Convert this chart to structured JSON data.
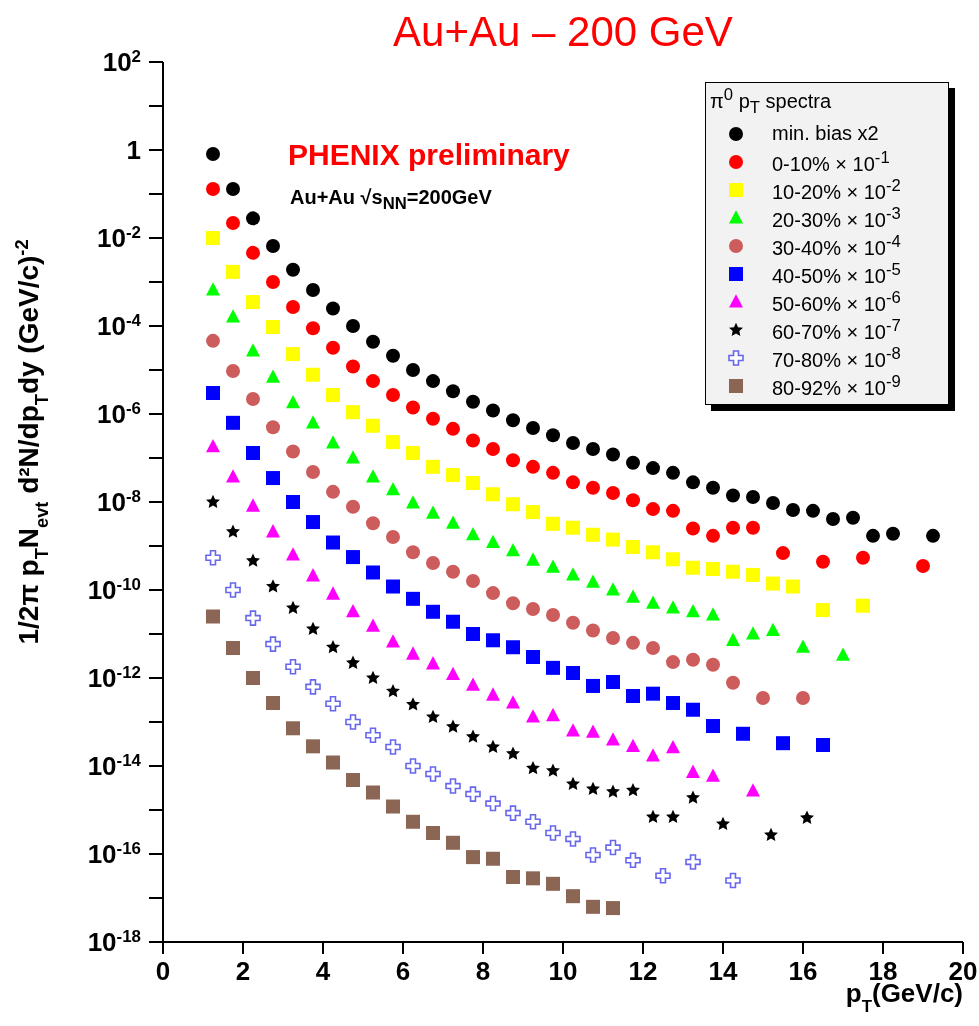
{
  "chart_data": {
    "type": "scatter",
    "title": "Au+Au – 200 GeV",
    "xlabel": "p$_{T}$(GeV/c)",
    "ylabel": "1/2π p$_{T}$N$_{evt}$ d²N/dp$_{T}$dy (GeV/c)$^{-2}$",
    "legend_title": "π$^{0}$ p$_{T}$ spectra",
    "annotations": [
      "PHENIX preliminary",
      "Au+Au √s$_{NN}$=200GeV"
    ],
    "log": "y",
    "grid": false,
    "legend": "top right",
    "xlim": [
      0,
      20
    ],
    "xticks": [
      0,
      2,
      4,
      6,
      8,
      10,
      12,
      14,
      16,
      18,
      20
    ],
    "ylim": [
      1e-18,
      100
    ],
    "yticks": [
      {
        "value": 100,
        "label": "10$^{2}$"
      },
      {
        "value": 10,
        "label": null
      },
      1,
      {
        "value": 0.1,
        "label": null
      },
      {
        "value": 0.01,
        "label": "10$^{-2}$"
      },
      {
        "value": 0.001,
        "label": null
      },
      {
        "value": 0.0001,
        "label": "10$^{-4}$"
      },
      {
        "value": 1e-05,
        "label": null
      },
      {
        "value": 1e-06,
        "label": "10$^{-6}$"
      },
      {
        "value": 1e-07,
        "label": null
      },
      {
        "value": 1e-08,
        "label": "10$^{-8}$"
      },
      {
        "value": 1e-09,
        "label": null
      },
      {
        "value": 1e-10,
        "label": "10$^{-10}$"
      },
      {
        "value": 1e-11,
        "label": null
      },
      {
        "value": 1e-12,
        "label": "10$^{-12}$"
      },
      {
        "value": 1e-13,
        "label": null
      },
      {
        "value": 1e-14,
        "label": "10$^{-14}$"
      },
      {
        "value": 1e-15,
        "label": null
      },
      {
        "value": 1e-16,
        "label": "10$^{-16}$"
      },
      {
        "value": 1e-17,
        "label": null
      },
      {
        "value": 1e-18,
        "label": "10$^{-18}$"
      }
    ],
    "series": [
      {
        "name": "min. bias x2",
        "color": "#000000",
        "marker": "circle",
        "x": [
          1.25,
          1.75,
          2.25,
          2.75,
          3.25,
          3.75,
          4.25,
          4.75,
          5.25,
          5.75,
          6.25,
          6.75,
          7.25,
          7.75,
          8.25,
          8.75,
          9.25,
          9.75,
          10.25,
          10.75,
          11.25,
          11.75,
          12.25,
          12.75,
          13.25,
          13.75,
          14.25,
          14.75,
          15.25,
          15.75,
          16.25,
          16.75,
          17.25,
          17.75,
          18.25,
          19.25
        ],
        "values": [
          0.81,
          0.13,
          0.028,
          0.0066,
          0.0019,
          0.00066,
          0.00025,
          0.0001,
          4.4e-05,
          2.1e-05,
          1e-05,
          5.6e-06,
          3.3e-06,
          1.9e-06,
          1.2e-06,
          7.2e-07,
          4.8e-07,
          3.3e-07,
          2.2e-07,
          1.6e-07,
          1.2e-07,
          7.8e-08,
          5.9e-08,
          4.6e-08,
          2.8e-08,
          2.1e-08,
          1.4e-08,
          1.3e-08,
          9.5e-09,
          6.6e-09,
          6.3e-09,
          4.1e-09,
          4.4e-09,
          1.7e-09,
          1.9e-09,
          1.7e-09
        ]
      },
      {
        "name": "0-10% × 10$^{-1}$",
        "color": "#ff0000",
        "marker": "circle",
        "x": [
          1.25,
          1.75,
          2.25,
          2.75,
          3.25,
          3.75,
          4.25,
          4.75,
          5.25,
          5.75,
          6.25,
          6.75,
          7.25,
          7.75,
          8.25,
          8.75,
          9.25,
          9.75,
          10.25,
          10.75,
          11.25,
          11.75,
          12.25,
          12.75,
          13.25,
          13.75,
          14.25,
          14.75,
          15.5,
          16.5,
          17.5,
          19
        ],
        "values": [
          0.13,
          0.022,
          0.0046,
          0.001,
          0.00027,
          8.9e-05,
          3.2e-05,
          1.2e-05,
          5.6e-06,
          2.7e-06,
          1.4e-06,
          7.8e-07,
          4.6e-07,
          2.5e-07,
          1.6e-07,
          8.9e-08,
          6.3e-08,
          4.6e-08,
          2.8e-08,
          2.1e-08,
          1.6e-08,
          1.1e-08,
          6.9e-09,
          6.3e-09,
          2.5e-09,
          1.7e-09,
          2.6e-09,
          2.6e-09,
          6.9e-10,
          4.4e-10,
          5.4e-10,
          3.5e-10
        ]
      },
      {
        "name": "10-20% × 10$^{-2}$",
        "color": "#ffff00",
        "marker": "square",
        "x": [
          1.25,
          1.75,
          2.25,
          2.75,
          3.25,
          3.75,
          4.25,
          4.75,
          5.25,
          5.75,
          6.25,
          6.75,
          7.25,
          7.75,
          8.25,
          8.75,
          9.25,
          9.75,
          10.25,
          10.75,
          11.25,
          11.75,
          12.25,
          12.75,
          13.25,
          13.75,
          14.25,
          14.75,
          15.25,
          15.75,
          16.5,
          17.5
        ],
        "values": [
          0.01,
          0.0017,
          0.00035,
          9.5e-05,
          2.3e-05,
          7.8e-06,
          2.7e-06,
          1.1e-06,
          5.4e-07,
          2.3e-07,
          1.3e-07,
          6.3e-08,
          4.1e-08,
          2.7e-08,
          1.5e-08,
          8.9e-09,
          5.9e-09,
          3.2e-09,
          2.6e-09,
          1.8e-09,
          1.4e-09,
          9.5e-10,
          7.2e-10,
          5e-10,
          3.2e-10,
          3e-10,
          2.6e-10,
          2.2e-10,
          1.4e-10,
          1.2e-10,
          3.5e-11,
          4.4e-11
        ]
      },
      {
        "name": "20-30% × 10$^{-3}$",
        "color": "#00ff00",
        "marker": "triangle",
        "x": [
          1.25,
          1.75,
          2.25,
          2.75,
          3.25,
          3.75,
          4.25,
          4.75,
          5.25,
          5.75,
          6.25,
          6.75,
          7.25,
          7.75,
          8.25,
          8.75,
          9.25,
          9.75,
          10.25,
          10.75,
          11.25,
          11.75,
          12.25,
          12.75,
          13.25,
          13.75,
          14.25,
          14.75,
          15.25,
          16,
          17
        ],
        "values": [
          0.00066,
          0.00016,
          2.7e-05,
          6.9e-06,
          1.8e-06,
          6.3e-07,
          2.2e-07,
          1e-07,
          3.7e-08,
          1.9e-08,
          9.5e-09,
          5.6e-09,
          3.3e-09,
          1.8e-09,
          1.2e-09,
          7.8e-10,
          4.8e-10,
          3.3e-10,
          2.2e-10,
          1.5e-10,
          1e-10,
          6.9e-11,
          5e-11,
          3.9e-11,
          3.2e-11,
          2.7e-11,
          7.2e-12,
          1e-11,
          1.2e-11,
          5e-12,
          3.3e-12
        ]
      },
      {
        "name": "30-40% × 10$^{-4}$",
        "color": "#cd5c5c",
        "marker": "circle",
        "x": [
          1.25,
          1.75,
          2.25,
          2.75,
          3.25,
          3.75,
          4.25,
          4.75,
          5.25,
          5.75,
          6.25,
          6.75,
          7.25,
          7.75,
          8.25,
          8.75,
          9.25,
          9.75,
          10.25,
          10.75,
          11.25,
          11.75,
          12.25,
          12.75,
          13.25,
          13.75,
          14.25,
          15,
          16
        ],
        "values": [
          4.6e-05,
          9.5e-06,
          2.2e-06,
          5e-07,
          1.4e-07,
          4.8e-08,
          1.7e-08,
          7.8e-09,
          3.3e-09,
          1.6e-09,
          7.2e-10,
          4.1e-10,
          2.6e-10,
          1.6e-10,
          8.5e-11,
          5e-11,
          3.7e-11,
          2.7e-11,
          1.8e-11,
          1.2e-11,
          8.1e-12,
          6.3e-12,
          4.8e-12,
          2.3e-12,
          2.6e-12,
          2e-12,
          7.8e-13,
          3.5e-13,
          3.5e-13
        ]
      },
      {
        "name": "40-50% × 10$^{-5}$",
        "color": "#0000ff",
        "marker": "square",
        "x": [
          1.25,
          1.75,
          2.25,
          2.75,
          3.25,
          3.75,
          4.25,
          4.75,
          5.25,
          5.75,
          6.25,
          6.75,
          7.25,
          7.75,
          8.25,
          8.75,
          9.25,
          9.75,
          10.25,
          10.75,
          11.25,
          11.75,
          12.25,
          12.75,
          13.25,
          13.75,
          14.5,
          15.5,
          16.5
        ],
        "values": [
          3e-06,
          6.3e-07,
          1.3e-07,
          3.5e-08,
          1e-08,
          3.5e-09,
          1.2e-09,
          5.6e-10,
          2.5e-10,
          1.2e-10,
          6.3e-11,
          3.2e-11,
          1.9e-11,
          1e-11,
          7.2e-12,
          5e-12,
          3e-12,
          1.7e-12,
          1.3e-12,
          6.6e-13,
          8.1e-13,
          3.9e-13,
          4.4e-13,
          2.7e-13,
          1.9e-13,
          8.1e-14,
          5.4e-14,
          3.3e-14,
          3e-14
        ]
      },
      {
        "name": "50-60% × 10$^{-6}$",
        "color": "#ff00ff",
        "marker": "triangle",
        "x": [
          1.25,
          1.75,
          2.25,
          2.75,
          3.25,
          3.75,
          4.25,
          4.75,
          5.25,
          5.75,
          6.25,
          6.75,
          7.25,
          7.75,
          8.25,
          8.75,
          9.25,
          9.75,
          10.25,
          10.75,
          11.25,
          11.75,
          12.25,
          12.75,
          13.25,
          13.75,
          14.75
        ],
        "values": [
          1.8e-07,
          3.7e-08,
          8.1e-09,
          2.1e-09,
          6.3e-10,
          2.1e-10,
          8.1e-11,
          3.2e-11,
          1.5e-11,
          6.6e-12,
          3.5e-12,
          2.1e-12,
          1.2e-12,
          6.9e-13,
          4.1e-13,
          2.7e-13,
          1.3e-13,
          1.4e-13,
          6.3e-14,
          5.9e-14,
          3.9e-14,
          2.8e-14,
          1.7e-14,
          2.6e-14,
          7.2e-15,
          5.9e-15,
          2.7e-15
        ]
      },
      {
        "name": "60-70% × 10$^{-7}$",
        "color": "#000000",
        "marker": "star",
        "x": [
          1.25,
          1.75,
          2.25,
          2.75,
          3.25,
          3.75,
          4.25,
          4.75,
          5.25,
          5.75,
          6.25,
          6.75,
          7.25,
          7.75,
          8.25,
          8.75,
          9.25,
          9.75,
          10.25,
          10.75,
          11.25,
          11.75,
          12.25,
          12.75,
          13.25,
          14,
          15.2,
          16.1
        ],
        "values": [
          1e-08,
          2.1e-09,
          4.6e-10,
          1.2e-10,
          3.9e-11,
          1.3e-11,
          5e-12,
          2.2e-12,
          1e-12,
          5e-13,
          2.5e-13,
          1.3e-13,
          7.8e-14,
          4.6e-14,
          2.7e-14,
          1.9e-14,
          8.9e-15,
          7.8e-15,
          3.9e-15,
          3e-15,
          2.6e-15,
          2.8e-15,
          6.9e-16,
          6.9e-16,
          1.9e-15,
          4.8e-16,
          2.7e-16,
          6.6e-16
        ]
      },
      {
        "name": "70-80% × 10$^{-8}$",
        "color": "#6666ee",
        "marker": "cross",
        "x": [
          1.25,
          1.75,
          2.25,
          2.75,
          3.25,
          3.75,
          4.25,
          4.75,
          5.25,
          5.75,
          6.25,
          6.75,
          7.25,
          7.75,
          8.25,
          8.75,
          9.25,
          9.75,
          10.25,
          10.75,
          11.25,
          11.75,
          12.5,
          13.25,
          14.25
        ],
        "values": [
          5.4e-10,
          1e-10,
          2.3e-11,
          5.9e-12,
          1.8e-12,
          6.3e-13,
          2.6e-13,
          1e-13,
          5e-14,
          2.7e-14,
          1e-14,
          6.6e-15,
          3.5e-15,
          2.3e-15,
          1.4e-15,
          8.5e-16,
          5.4e-16,
          3e-16,
          2.2e-16,
          9.5e-17,
          1.4e-16,
          7.2e-17,
          3.2e-17,
          6.6e-17,
          2.5e-17
        ]
      },
      {
        "name": "80-92% × 10$^{-9}$",
        "color": "#8b6655",
        "marker": "square",
        "x": [
          1.25,
          1.75,
          2.25,
          2.75,
          3.25,
          3.75,
          4.25,
          4.75,
          5.25,
          5.75,
          6.25,
          6.75,
          7.25,
          7.75,
          8.25,
          8.75,
          9.25,
          9.75,
          10.25,
          10.75,
          11.25
        ],
        "values": [
          2.5e-11,
          4.8e-12,
          1e-12,
          2.7e-13,
          7.2e-14,
          2.8e-14,
          1.2e-14,
          4.8e-15,
          2.5e-15,
          1.2e-15,
          5.4e-16,
          3e-16,
          1.8e-16,
          8.5e-17,
          7.8e-17,
          3e-17,
          2.8e-17,
          2.1e-17,
          1.1e-17,
          6.3e-18,
          5.9e-18
        ]
      }
    ]
  }
}
